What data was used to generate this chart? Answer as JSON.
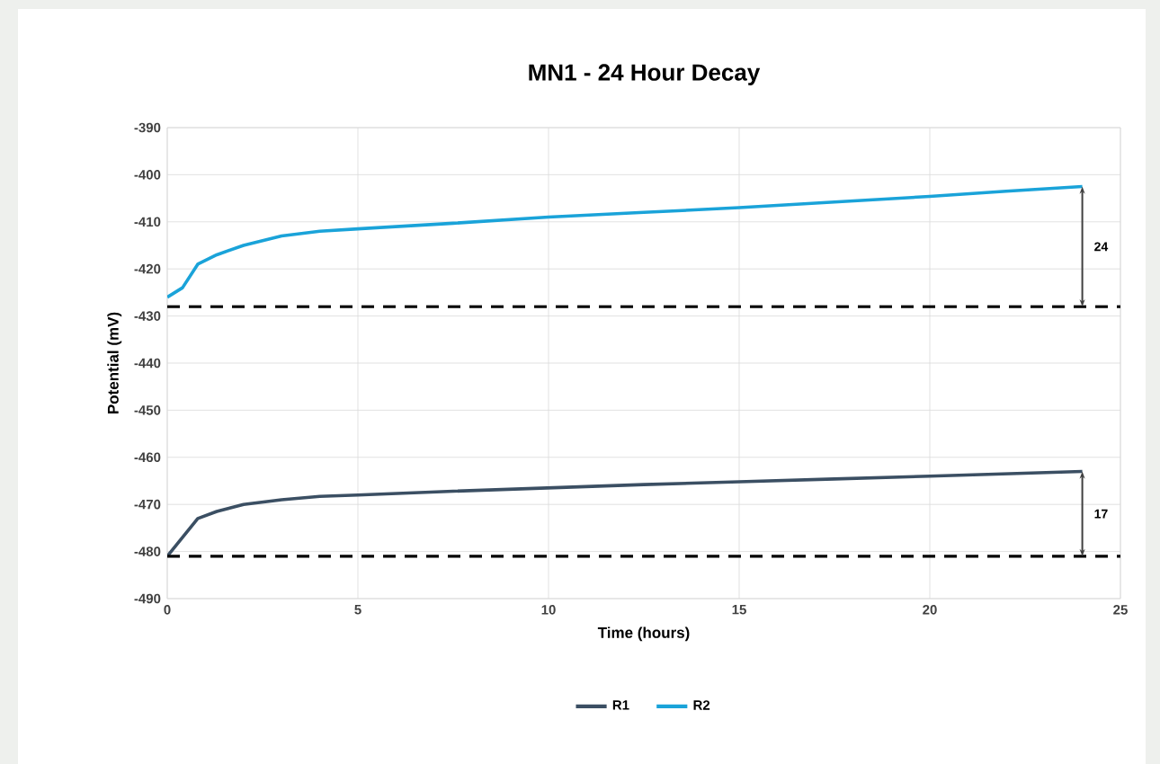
{
  "chart_data": {
    "type": "line",
    "title": "MN1 - 24 Hour Decay",
    "xlabel": "Time (hours)",
    "ylabel": "Potential (mV)",
    "x": [
      0,
      0.4,
      0.8,
      1.3,
      2,
      3,
      4,
      5,
      7.5,
      10,
      12.5,
      15,
      17.5,
      20,
      22,
      24
    ],
    "series": [
      {
        "name": "R1",
        "color": "#3b4f63",
        "values": [
          -481,
          -477,
          -473,
          -471.5,
          -470,
          -469,
          -468.3,
          -468,
          -467.2,
          -466.5,
          -465.8,
          -465.2,
          -464.6,
          -464,
          -463.5,
          -463
        ]
      },
      {
        "name": "R2",
        "color": "#1aa3d9",
        "values": [
          -426,
          -424,
          -419,
          -417,
          -415,
          -413,
          -412,
          -411.5,
          -410.3,
          -409,
          -408,
          -407,
          -405.8,
          -404.6,
          -403.5,
          -402.5
        ]
      }
    ],
    "xlim": [
      0,
      25
    ],
    "xticks": [
      0,
      5,
      10,
      15,
      20,
      25
    ],
    "ylim": [
      -490,
      -390
    ],
    "yticks": [
      -390,
      -400,
      -410,
      -420,
      -430,
      -440,
      -450,
      -460,
      -470,
      -480,
      -490
    ],
    "ref_lines": [
      {
        "axis": "y",
        "value": -481,
        "color": "#000000",
        "line_style": "dashed"
      },
      {
        "axis": "y",
        "value": -428,
        "color": "#000000",
        "line_style": "dashed"
      }
    ],
    "annotations": [
      "17",
      "24"
    ],
    "grid": true,
    "legend": "bottom",
    "marker": "none",
    "line_style": "solid"
  }
}
